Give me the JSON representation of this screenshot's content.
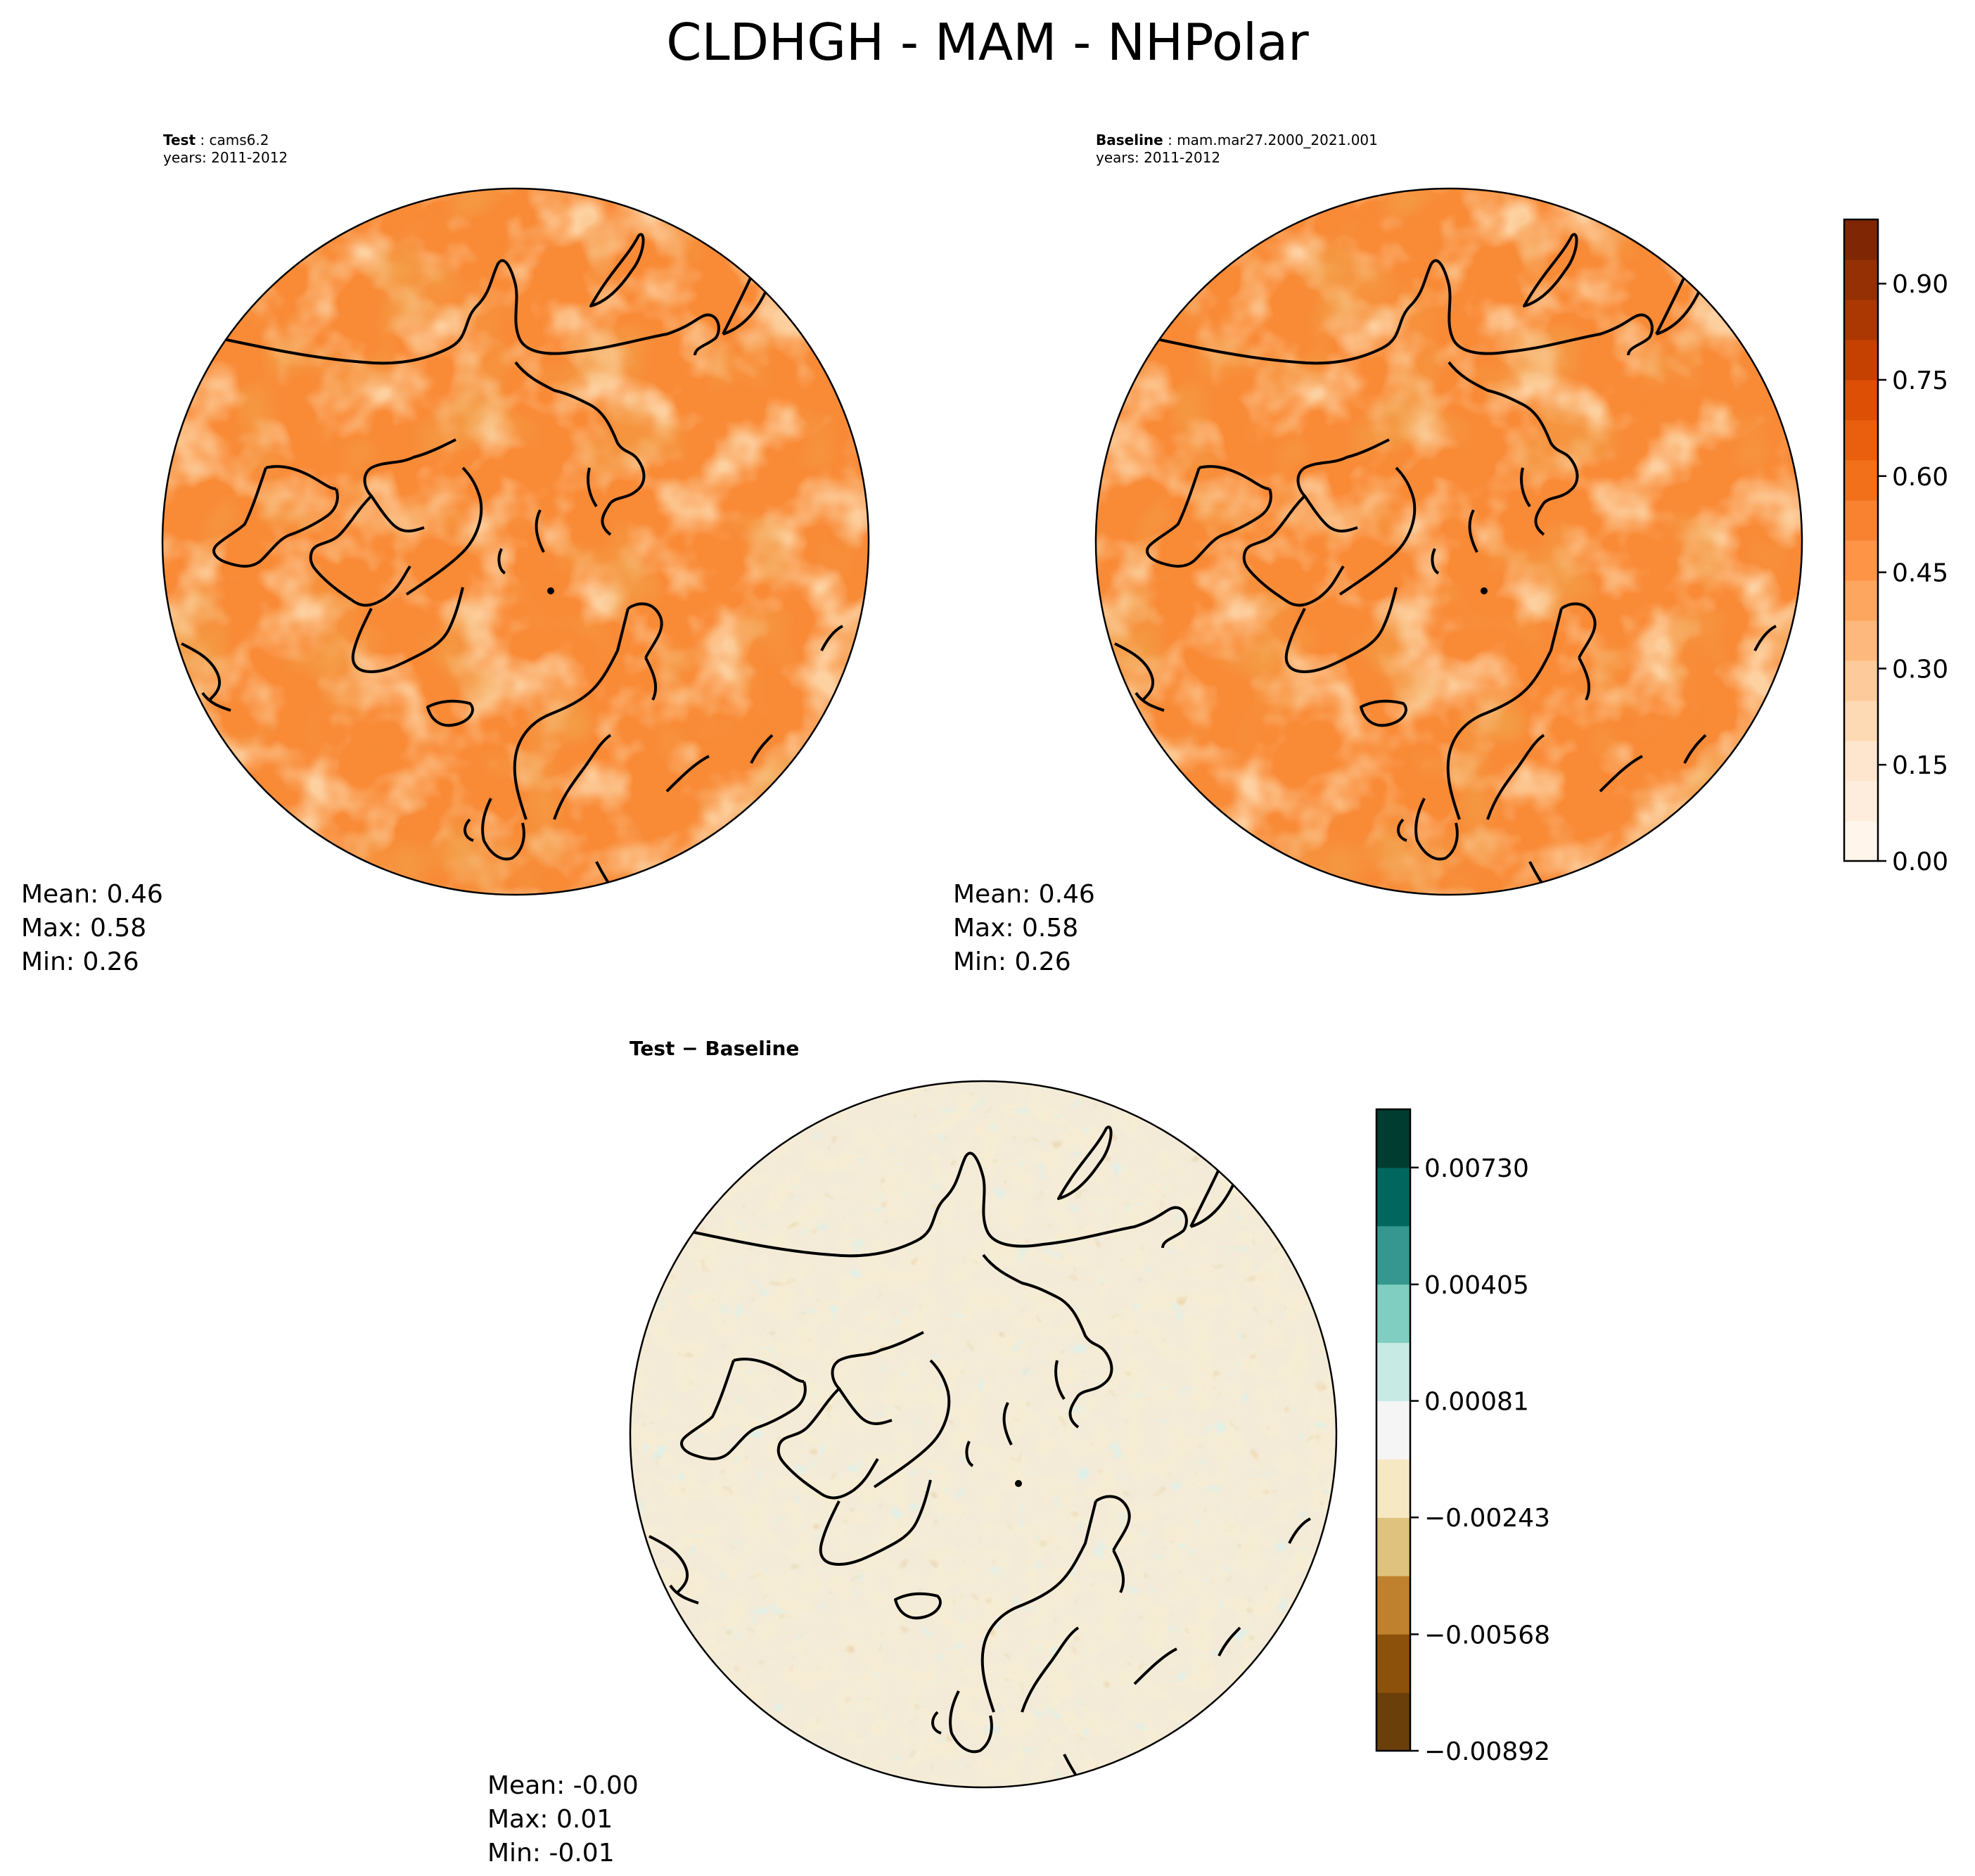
{
  "title": "CLDHGH - MAM - NHPolar",
  "panels": [
    {
      "id": "test",
      "label": "Test",
      "name": "cams6.2",
      "years": "years: 2011-2012",
      "stats": {
        "mean": "Mean:  0.46",
        "max": "Max:  0.58",
        "min": "Min:  0.26"
      }
    },
    {
      "id": "baseline",
      "label": "Baseline",
      "name": "mam.mar27.2000_2021.001",
      "years": "years: 2011-2012",
      "stats": {
        "mean": "Mean:  0.46",
        "max": "Max:  0.58",
        "min": "Min:  0.26"
      }
    },
    {
      "id": "diff",
      "label": "Test − Baseline",
      "stats": {
        "mean": "Mean: -0.00",
        "max": "Max:  0.01",
        "min": "Min: -0.01"
      }
    }
  ],
  "colorbars": {
    "main": {
      "ticks": [
        "0.00",
        "0.15",
        "0.30",
        "0.45",
        "0.60",
        "0.75",
        "0.90"
      ],
      "colors": [
        "#fff5eb",
        "#feeddc",
        "#fee6ce",
        "#fdd9b4",
        "#fdcb9b",
        "#fdb97d",
        "#fda660",
        "#fd9446",
        "#f98230",
        "#f3701b",
        "#e95f0e",
        "#dc4f05",
        "#c54102",
        "#ab3803",
        "#943004",
        "#7f2704"
      ]
    },
    "diff": {
      "ticks": [
        "−0.00892",
        "−0.00568",
        "−0.00243",
        "0.00081",
        "0.00405",
        "0.00730"
      ],
      "colors": [
        "#6b3f0a",
        "#8c510a",
        "#bf812d",
        "#dfc27d",
        "#f6e8c3",
        "#f5f5f5",
        "#c7eae5",
        "#80cdc1",
        "#35978f",
        "#01665e",
        "#003c30"
      ]
    }
  },
  "chart_data": [
    {
      "type": "heatmap",
      "title": "Test: cams6.2",
      "projection": "north-polar-stereographic",
      "variable": "CLDHGH",
      "season": "MAM",
      "years": "2011-2012",
      "summary": {
        "mean": 0.46,
        "max": 0.58,
        "min": 0.26
      },
      "colorbar_range": [
        0,
        1
      ]
    },
    {
      "type": "heatmap",
      "title": "Baseline: mam.mar27.2000_2021.001",
      "projection": "north-polar-stereographic",
      "variable": "CLDHGH",
      "season": "MAM",
      "years": "2011-2012",
      "summary": {
        "mean": 0.46,
        "max": 0.58,
        "min": 0.26
      },
      "colorbar_range": [
        0,
        1
      ]
    },
    {
      "type": "heatmap",
      "title": "Test − Baseline",
      "projection": "north-polar-stereographic",
      "summary": {
        "mean": -0.0,
        "max": 0.01,
        "min": -0.01
      },
      "colorbar_range": [
        -0.00892,
        0.00892
      ]
    }
  ]
}
